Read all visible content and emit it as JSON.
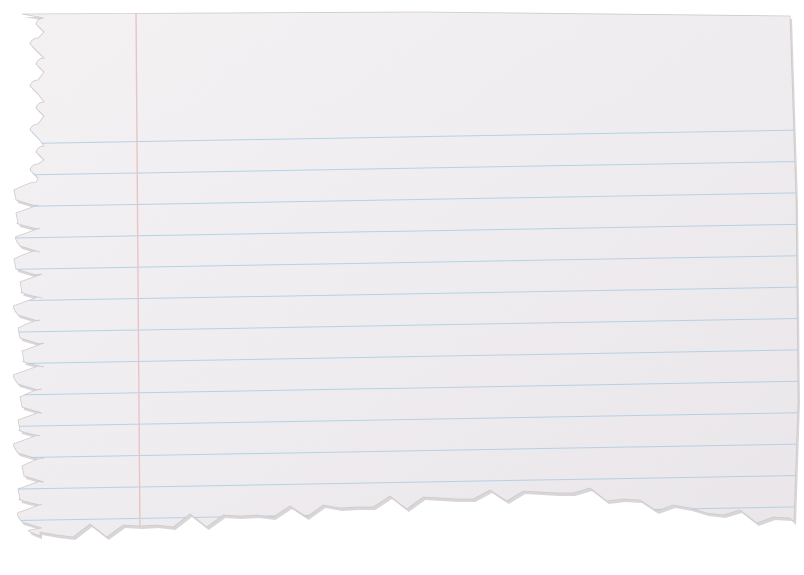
{
  "image": {
    "subject": "torn-lined-notebook-paper",
    "colors": {
      "background": "#ffffff",
      "paper": "#f4f1f3",
      "paper_shade": "#e9e5e8",
      "rule_line": "#aacde6",
      "margin_line": "#e8c4c6",
      "edge_shadow": "#b9b4b8"
    }
  }
}
